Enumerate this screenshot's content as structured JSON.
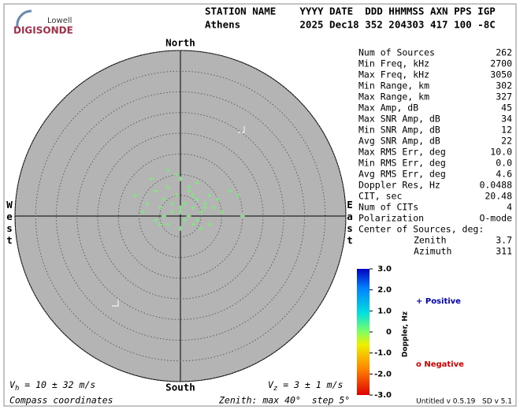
{
  "chart_data": {
    "type": "skymap",
    "logo": {
      "top": "Lowell",
      "bottom": "DIGISONDE"
    },
    "header": {
      "labels": "STATION NAME    YYYY DATE  DDD HHMMSS AXN PPS IGP",
      "values": "Athens          2025 Dec18 352 204303 417 100 -8C"
    },
    "directions": {
      "north": "North",
      "south": "South",
      "west": "West",
      "east": "East"
    },
    "xlim": [
      -40,
      40
    ],
    "ylim": [
      -40,
      40
    ],
    "rticks": [
      5,
      10,
      15,
      20,
      25,
      30,
      35,
      40
    ],
    "series": [
      {
        "color": "#7ee87e",
        "x": [
          -11,
          -8,
          -7,
          -6,
          -5,
          -4,
          -3,
          -2,
          -1,
          0,
          1,
          2,
          3,
          4,
          5,
          6,
          7,
          8,
          9,
          10,
          12,
          14,
          15,
          -9,
          -6,
          -3,
          0,
          2,
          4,
          6,
          -4,
          -1,
          1,
          3,
          5,
          2,
          0,
          -2,
          3,
          1,
          -5,
          7,
          -3,
          4,
          0
        ],
        "values": [
          5,
          3,
          9,
          6,
          2,
          4,
          7,
          1,
          5,
          9,
          3,
          6,
          2,
          4,
          1,
          3,
          5,
          2,
          4,
          1,
          6,
          5,
          0,
          1,
          -1,
          -2,
          -3,
          0,
          -1,
          2,
          0,
          10,
          3,
          -2,
          -3,
          7,
          1,
          3,
          5,
          -1,
          -2,
          -2,
          11,
          8,
          2
        ]
      }
    ],
    "params": [
      [
        "Num of Sources",
        "262"
      ],
      [
        "Min Freq, kHz",
        "2700"
      ],
      [
        "Max Freq, kHz",
        "3050"
      ],
      [
        "Min Range, km",
        "302"
      ],
      [
        "Max Range, km",
        "327"
      ],
      [
        "Max Amp, dB",
        "45"
      ],
      [
        "Max SNR Amp, dB",
        "34"
      ],
      [
        "Min SNR Amp, dB",
        "12"
      ],
      [
        "Avg SNR Amp, dB",
        "22"
      ],
      [
        "Max RMS Err, deg",
        "10.0"
      ],
      [
        "Min RMS Err, deg",
        "0.0"
      ],
      [
        "Avg RMS Err, deg",
        "4.6"
      ],
      [
        "Doppler Res, Hz",
        "0.0488"
      ],
      [
        "CIT, sec",
        "20.48"
      ],
      [
        "Num of CITs",
        "4"
      ],
      [
        "Polarization",
        "O-mode"
      ]
    ],
    "center_title": "Center of Sources, deg:",
    "center": [
      [
        "Zenith",
        "3.7"
      ],
      [
        "Azimuth",
        "311"
      ]
    ],
    "colorbar": {
      "title": "Doppler, Hz",
      "clim": [
        -3,
        3
      ],
      "ticks": [
        {
          "value": 3,
          "label": "3.0"
        },
        {
          "value": 2,
          "label": "2.0"
        },
        {
          "value": 1,
          "label": "1.0"
        },
        0,
        {
          "value": -1,
          "label": "-1.0"
        },
        {
          "value": -2,
          "label": "-2.0"
        },
        {
          "value": -3,
          "label": "-3.0"
        }
      ]
    },
    "legend": {
      "positive": "+ Positive",
      "negative": "o Negative"
    },
    "vh": {
      "symbol": "V",
      "sub": "h",
      "text": " = 10 ± 32 m/s"
    },
    "vz": {
      "symbol": "V",
      "sub": "z",
      "text": " = 3 ± 1 m/s"
    },
    "footer": {
      "left": "Compass coordinates",
      "middle": "Zenith: max 40°  step 5°",
      "right": "Untitled v 0.5.19   SD v 5.1"
    }
  }
}
